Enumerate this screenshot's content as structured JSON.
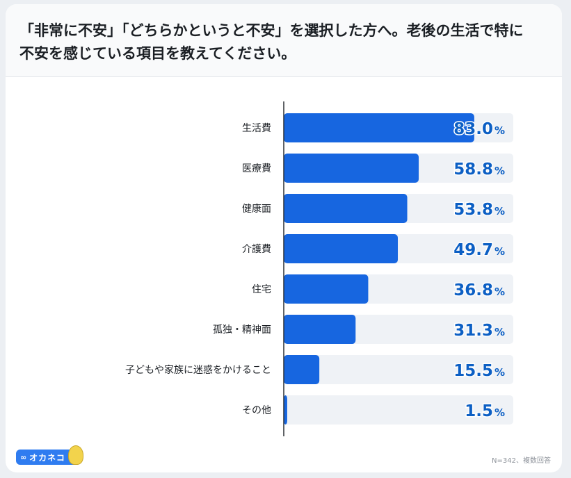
{
  "title": "「非常に不安」「どちらかというと不安」を選択した方へ。老後の生活で特に\n不安を感じている項目を教えてください。",
  "logo": {
    "text": "オカネコ",
    "mark": "∞",
    "icon": "cat-mascot-icon"
  },
  "footnote": "N=342、複数回答",
  "colors": {
    "bar": "#1766e0",
    "track": "#eff2f6",
    "value": "#0c5fc4",
    "axis": "#2a2e33"
  },
  "chart_data": {
    "type": "bar",
    "orientation": "horizontal",
    "categories": [
      "生活費",
      "医療費",
      "健康面",
      "介護費",
      "住宅",
      "孤独・精神面",
      "子どもや家族に迷惑をかけること",
      "その他"
    ],
    "values": [
      83.0,
      58.8,
      53.8,
      49.7,
      36.8,
      31.3,
      15.5,
      1.5
    ],
    "value_labels": [
      "83.0",
      "58.8",
      "53.8",
      "49.7",
      "36.8",
      "31.3",
      "15.5",
      "1.5"
    ],
    "unit": "%",
    "xlim": [
      0,
      100
    ],
    "grid": false
  }
}
